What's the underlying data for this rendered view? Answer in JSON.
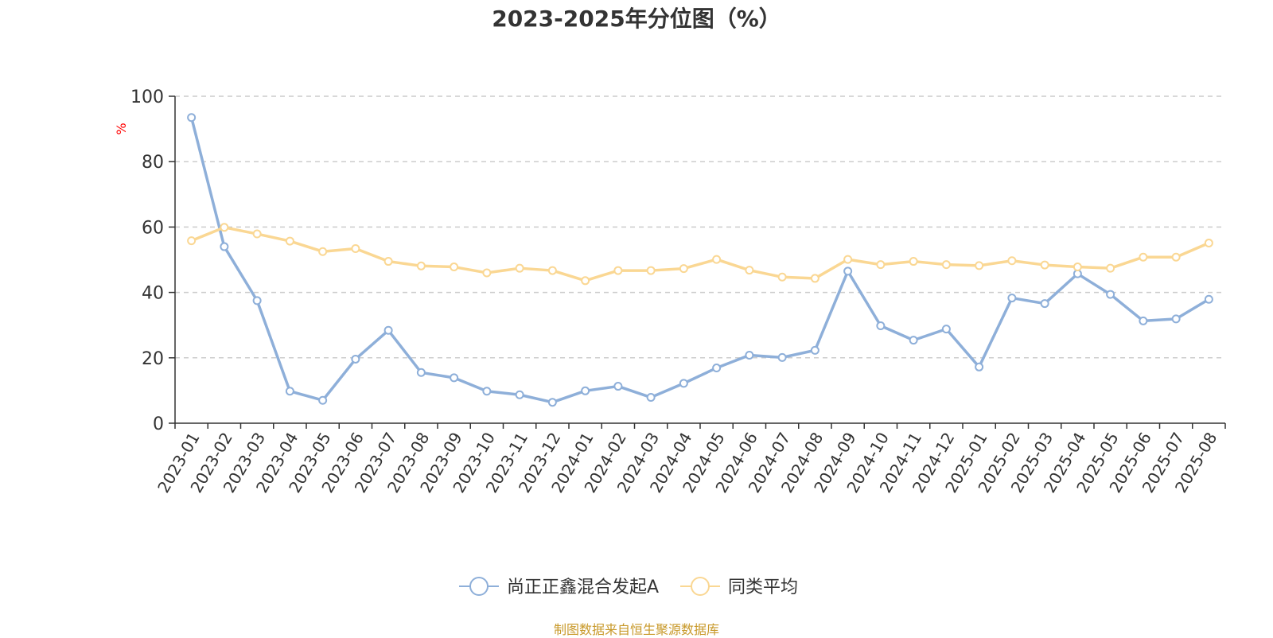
{
  "chart_data": {
    "type": "line",
    "title": "2023-2025年分位图（%）",
    "ylabel": "%",
    "xlabel": "",
    "ylim": [
      0,
      100
    ],
    "yticks": [
      0,
      20,
      40,
      60,
      80,
      100
    ],
    "grid": true,
    "legend_position": "bottom",
    "categories": [
      "2023-01",
      "2023-02",
      "2023-03",
      "2023-04",
      "2023-05",
      "2023-06",
      "2023-07",
      "2023-08",
      "2023-09",
      "2023-10",
      "2023-11",
      "2023-12",
      "2024-01",
      "2024-02",
      "2024-03",
      "2024-04",
      "2024-05",
      "2024-06",
      "2024-07",
      "2024-08",
      "2024-09",
      "2024-10",
      "2024-11",
      "2024-12",
      "2025-01",
      "2025-02",
      "2025-03",
      "2025-04",
      "2025-05",
      "2025-06",
      "2025-07",
      "2025-08"
    ],
    "series": [
      {
        "name": "尚正正鑫混合发起A",
        "color": "#8eafd9",
        "values": [
          93.5,
          54.0,
          37.5,
          9.8,
          7.0,
          19.6,
          28.4,
          15.5,
          13.9,
          9.8,
          8.7,
          6.4,
          9.9,
          11.3,
          7.9,
          12.2,
          16.9,
          20.8,
          20.1,
          22.3,
          46.5,
          29.8,
          25.4,
          28.8,
          17.2,
          38.3,
          36.6,
          45.7,
          39.4,
          31.3,
          31.9,
          37.9
        ]
      },
      {
        "name": "同类平均",
        "color": "#fad793",
        "values": [
          55.8,
          59.9,
          57.9,
          55.7,
          52.5,
          53.4,
          49.5,
          48.1,
          47.8,
          46.0,
          47.4,
          46.7,
          43.6,
          46.7,
          46.7,
          47.3,
          50.1,
          46.8,
          44.7,
          44.3,
          50.1,
          48.5,
          49.5,
          48.5,
          48.2,
          49.7,
          48.4,
          47.8,
          47.4,
          50.8,
          50.8,
          55.1
        ]
      }
    ]
  },
  "source_note": "制图数据来自恒生聚源数据库",
  "colors": {
    "axis": "#333333",
    "grid": "#cccccc",
    "ylabel": "#ff0000",
    "source": "#c8992a"
  }
}
